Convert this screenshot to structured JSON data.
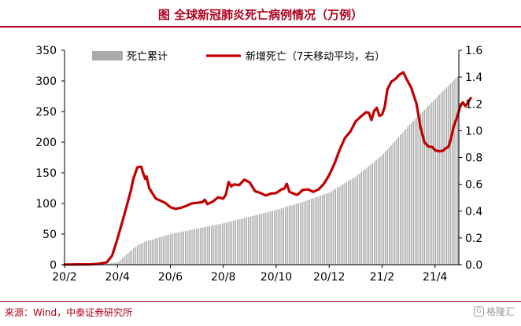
{
  "header": {
    "title": "图  全球新冠肺炎死亡病例情况（万例）",
    "title_color": "#b0001c",
    "rule_color": "#b0001c"
  },
  "footer": {
    "source": "来源：Wind，中泰证券研究所",
    "watermark": "格隆汇"
  },
  "chart_data": {
    "type": "bar+line",
    "x_ticks": [
      "20/2",
      "20/4",
      "20/6",
      "20/8",
      "20/10",
      "20/12",
      "21/2",
      "21/4"
    ],
    "x_range_months": [
      0,
      14.9
    ],
    "left_axis": {
      "ylim": [
        0,
        350
      ],
      "ticks": [
        0,
        50,
        100,
        150,
        200,
        250,
        300,
        350
      ]
    },
    "right_axis": {
      "ylim": [
        0,
        1.6
      ],
      "ticks": [
        "0.0",
        "0.2",
        "0.4",
        "0.6",
        "0.8",
        "1.0",
        "1.2",
        "1.4",
        "1.6"
      ]
    },
    "legend_position": "top-center",
    "grid": false,
    "series": [
      {
        "name": "死亡累计",
        "type": "bar",
        "axis": "right",
        "color": "#aaaaaa",
        "points": [
          [
            1.4,
            0.0
          ],
          [
            2.0,
            0.02
          ],
          [
            2.4,
            0.09
          ],
          [
            2.7,
            0.14
          ],
          [
            3.0,
            0.17
          ],
          [
            4.0,
            0.23
          ],
          [
            5.0,
            0.27
          ],
          [
            6.0,
            0.31
          ],
          [
            7.0,
            0.36
          ],
          [
            8.0,
            0.41
          ],
          [
            9.0,
            0.47
          ],
          [
            10.0,
            0.54
          ],
          [
            11.0,
            0.66
          ],
          [
            12.0,
            0.82
          ],
          [
            13.0,
            1.04
          ],
          [
            14.0,
            1.24
          ],
          [
            14.9,
            1.42
          ]
        ]
      },
      {
        "name": "新增死亡（7天移动平均，右）",
        "type": "line",
        "axis": "left",
        "color": "#c00000",
        "points": [
          [
            0,
            0.2
          ],
          [
            0.5,
            0.5
          ],
          [
            1.0,
            0.7
          ],
          [
            1.3,
            1.5
          ],
          [
            1.6,
            4
          ],
          [
            1.8,
            15
          ],
          [
            2.0,
            42
          ],
          [
            2.3,
            88
          ],
          [
            2.5,
            120
          ],
          [
            2.6,
            140
          ],
          [
            2.75,
            159
          ],
          [
            2.9,
            160
          ],
          [
            2.95,
            152
          ],
          [
            3.05,
            140
          ],
          [
            3.1,
            144
          ],
          [
            3.2,
            125
          ],
          [
            3.3,
            118
          ],
          [
            3.45,
            108
          ],
          [
            3.6,
            105
          ],
          [
            3.8,
            101
          ],
          [
            4.0,
            94
          ],
          [
            4.2,
            91
          ],
          [
            4.4,
            93
          ],
          [
            4.6,
            96
          ],
          [
            4.8,
            100
          ],
          [
            5.0,
            101
          ],
          [
            5.2,
            102
          ],
          [
            5.3,
            106
          ],
          [
            5.4,
            99
          ],
          [
            5.6,
            103
          ],
          [
            5.8,
            110
          ],
          [
            6.0,
            108
          ],
          [
            6.1,
            115
          ],
          [
            6.2,
            135
          ],
          [
            6.3,
            128
          ],
          [
            6.4,
            131
          ],
          [
            6.6,
            130
          ],
          [
            6.8,
            139
          ],
          [
            7.0,
            134
          ],
          [
            7.2,
            120
          ],
          [
            7.4,
            117
          ],
          [
            7.6,
            113
          ],
          [
            7.8,
            116
          ],
          [
            8.0,
            117
          ],
          [
            8.2,
            123
          ],
          [
            8.3,
            124
          ],
          [
            8.4,
            132
          ],
          [
            8.5,
            119
          ],
          [
            8.6,
            117
          ],
          [
            8.8,
            114
          ],
          [
            9.0,
            122
          ],
          [
            9.2,
            123
          ],
          [
            9.4,
            119
          ],
          [
            9.6,
            123
          ],
          [
            9.8,
            132
          ],
          [
            10.0,
            146
          ],
          [
            10.2,
            165
          ],
          [
            10.4,
            188
          ],
          [
            10.6,
            207
          ],
          [
            10.8,
            217
          ],
          [
            11.0,
            234
          ],
          [
            11.2,
            242
          ],
          [
            11.4,
            249
          ],
          [
            11.5,
            248
          ],
          [
            11.6,
            236
          ],
          [
            11.7,
            251
          ],
          [
            11.8,
            256
          ],
          [
            11.9,
            243
          ],
          [
            12.0,
            245
          ],
          [
            12.1,
            258
          ],
          [
            12.2,
            286
          ],
          [
            12.35,
            299
          ],
          [
            12.5,
            303
          ],
          [
            12.65,
            310
          ],
          [
            12.8,
            314
          ],
          [
            12.95,
            301
          ],
          [
            13.1,
            289
          ],
          [
            13.2,
            276
          ],
          [
            13.3,
            263
          ],
          [
            13.45,
            225
          ],
          [
            13.6,
            200
          ],
          [
            13.75,
            193
          ],
          [
            13.9,
            192
          ],
          [
            14.0,
            187
          ],
          [
            14.15,
            185
          ],
          [
            14.3,
            186
          ],
          [
            14.4,
            190
          ],
          [
            14.5,
            192
          ],
          [
            14.6,
            205
          ],
          [
            14.7,
            225
          ],
          [
            14.85,
            243
          ],
          [
            14.95,
            258
          ],
          [
            15.05,
            265
          ],
          [
            15.15,
            259
          ],
          [
            15.25,
            265
          ],
          [
            15.35,
            272
          ]
        ]
      }
    ]
  }
}
